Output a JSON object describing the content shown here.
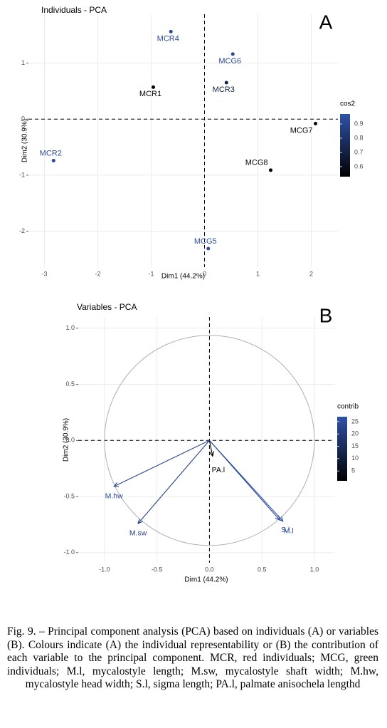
{
  "chart_data": [
    {
      "type": "scatter",
      "title": "Individuals - PCA",
      "panel_label": "A",
      "x_label": "Dim1 (44.2%)",
      "y_label": "Dim2 (30.9%)",
      "categories": [
        "MCR4",
        "MCG6",
        "MCR1",
        "MCR3",
        "MCG7",
        "MCR2",
        "MCG8",
        "MCG5"
      ],
      "x": [
        -0.63,
        0.53,
        -0.96,
        0.41,
        2.08,
        -2.83,
        1.24,
        0.07
      ],
      "values": [
        1.56,
        1.16,
        0.57,
        0.65,
        -0.08,
        -0.74,
        -0.91,
        -2.31
      ],
      "color_values": [
        0.93,
        0.92,
        0.55,
        0.7,
        0.55,
        0.93,
        0.55,
        0.95
      ],
      "colorbar": {
        "title": "cos2",
        "lim": [
          0.53,
          0.97
        ],
        "ticks": [
          0.6,
          0.7,
          0.8,
          0.9
        ],
        "colors": [
          "#000000",
          "#2f52a8"
        ]
      },
      "xlim": [
        -3.3,
        2.5
      ],
      "ylim": [
        -2.64,
        1.87
      ],
      "xticks": [
        -3,
        -2,
        -1,
        0,
        1,
        2
      ],
      "yticks": [
        -2,
        -1,
        0,
        1
      ],
      "grid": true
    },
    {
      "type": "arrow",
      "title": "Variables - PCA",
      "panel_label": "B",
      "x_label": "Dim1 (44.2%)",
      "y_label": "Dim2 (30.9%)",
      "categories": [
        "M.hw",
        "M.sw",
        "PA.l",
        "S.l",
        "M.l"
      ],
      "x": [
        -0.91,
        -0.68,
        0.03,
        0.67,
        0.7
      ],
      "values": [
        -0.41,
        -0.74,
        -0.14,
        -0.71,
        -0.72
      ],
      "color_values": [
        24,
        22,
        1,
        24,
        26
      ],
      "colorbar": {
        "title": "contrib",
        "lim": [
          1,
          27
        ],
        "ticks": [
          5,
          10,
          15,
          20,
          25
        ],
        "colors": [
          "#000000",
          "#2f52a8"
        ]
      },
      "xlim": [
        -1.25,
        1.19
      ],
      "ylim": [
        -1.09,
        1.1
      ],
      "xticks": [
        {
          "value": -1,
          "label": "-1.0"
        },
        -0.5,
        {
          "value": 0,
          "label": "0.0"
        },
        0.5,
        {
          "value": 1,
          "label": "1.0"
        }
      ],
      "yticks": [
        {
          "value": -1,
          "label": "-1.0"
        },
        -0.5,
        {
          "value": 0,
          "label": "0.0"
        },
        0.5,
        {
          "value": 1,
          "label": "1.0"
        }
      ],
      "grid": true
    }
  ],
  "caption": "Fig. 9. – Principal component analysis (PCA) based on individuals (A) or variables (B). Colours indicate (A) the individual representability or (B) the contribution of each variable to the principal component. MCR, red individuals; MCG, green individuals; M.l, mycalostyle length; M.sw, mycalostyle shaft width; M.hw, mycalostyle head width; S.l, sigma length; PA.l, palmate anisochela lengthd"
}
